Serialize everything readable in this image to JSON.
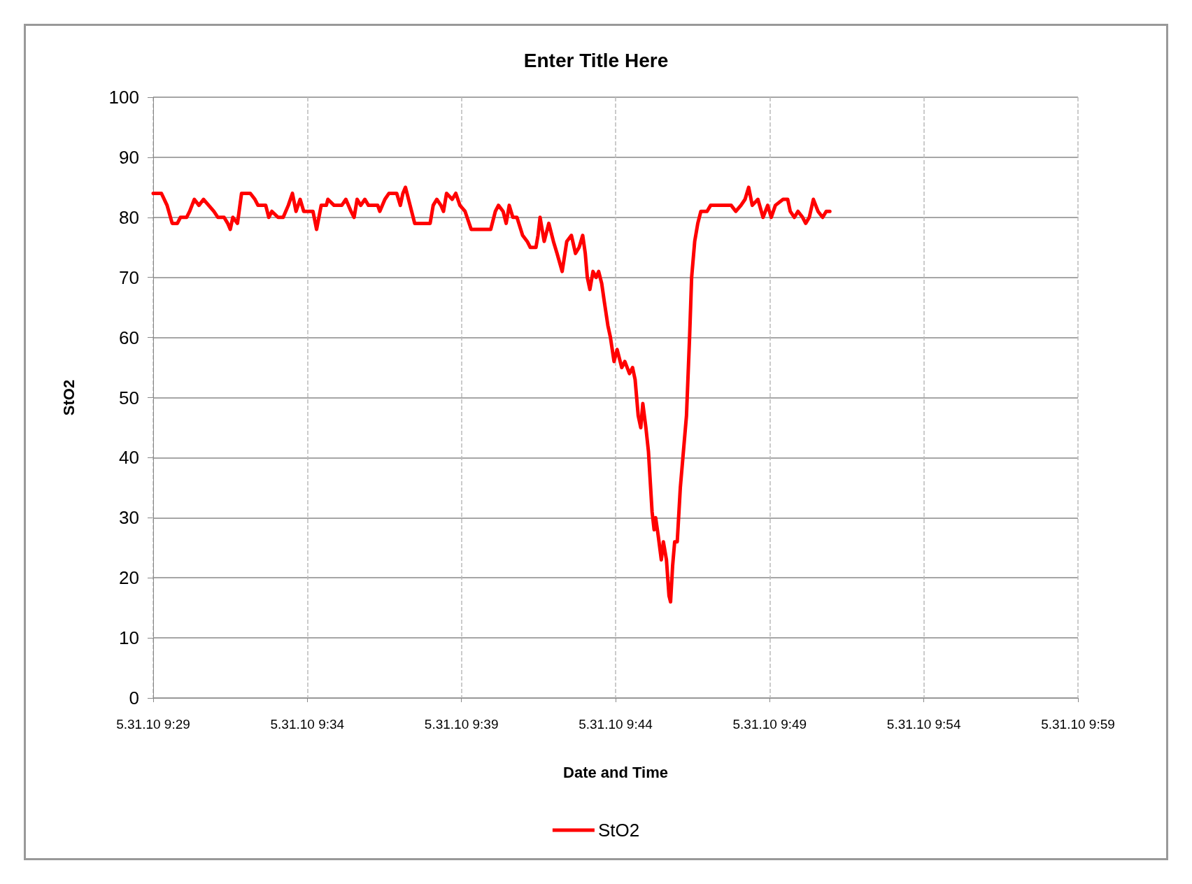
{
  "chart_data": {
    "type": "line",
    "title": "Enter Title Here",
    "xlabel": "Date and Time",
    "ylabel": "StO2",
    "x": [
      "--05-31T09:29:00",
      "--05-31T09:29:16",
      "--05-31T09:29:27",
      "--05-31T09:29:37",
      "--05-31T09:29:47",
      "--05-31T09:29:53",
      "--05-31T09:30:05",
      "--05-31T09:30:11",
      "--05-31T09:30:20",
      "--05-31T09:30:29",
      "--05-31T09:30:38",
      "--05-31T09:30:48",
      "--05-31T09:30:58",
      "--05-31T09:31:06",
      "--05-31T09:31:18",
      "--05-31T09:31:25",
      "--05-31T09:31:30",
      "--05-31T09:31:35",
      "--05-31T09:31:44",
      "--05-31T09:31:52",
      "--05-31T09:32:09",
      "--05-31T09:32:18",
      "--05-31T09:32:24",
      "--05-31T09:32:39",
      "--05-31T09:32:45",
      "--05-31T09:32:51",
      "--05-31T09:33:03",
      "--05-31T09:33:13",
      "--05-31T09:33:23",
      "--05-31T09:33:31",
      "--05-31T09:33:38",
      "--05-31T09:33:46",
      "--05-31T09:33:53",
      "--05-31T09:34:11",
      "--05-31T09:34:18",
      "--05-31T09:34:27",
      "--05-31T09:34:37",
      "--05-31T09:34:40",
      "--05-31T09:34:52",
      "--05-31T09:35:07",
      "--05-31T09:35:15",
      "--05-31T09:35:25",
      "--05-31T09:35:31",
      "--05-31T09:35:37",
      "--05-31T09:35:44",
      "--05-31T09:35:52",
      "--05-31T09:35:59",
      "--05-31T09:36:17",
      "--05-31T09:36:21",
      "--05-31T09:36:31",
      "--05-31T09:36:39",
      "--05-31T09:36:54",
      "--05-31T09:37:01",
      "--05-31T09:37:06",
      "--05-31T09:37:11",
      "--05-31T09:37:20",
      "--05-31T09:37:29",
      "--05-31T09:37:59",
      "--05-31T09:38:05",
      "--05-31T09:38:12",
      "--05-31T09:38:20",
      "--05-31T09:38:25",
      "--05-31T09:38:31",
      "--05-31T09:38:42",
      "--05-31T09:38:49",
      "--05-31T09:38:57",
      "--05-31T09:39:07",
      "--05-31T09:39:19",
      "--05-31T09:39:57",
      "--05-31T09:40:06",
      "--05-31T09:40:12",
      "--05-31T09:40:21",
      "--05-31T09:40:27",
      "--05-31T09:40:33",
      "--05-31T09:40:40",
      "--05-31T09:40:48",
      "--05-31T09:40:59",
      "--05-31T09:41:08",
      "--05-31T09:41:14",
      "--05-31T09:41:25",
      "--05-31T09:41:29",
      "--05-31T09:41:33",
      "--05-31T09:41:41",
      "--05-31T09:41:50",
      "--05-31T09:41:59",
      "--05-31T09:42:06",
      "--05-31T09:42:16",
      "--05-31T09:42:25",
      "--05-31T09:42:34",
      "--05-31T09:42:42",
      "--05-31T09:42:49",
      "--05-31T09:42:56",
      "--05-31T09:43:01",
      "--05-31T09:43:05",
      "--05-31T09:43:10",
      "--05-31T09:43:16",
      "--05-31T09:43:22",
      "--05-31T09:43:27",
      "--05-31T09:43:33",
      "--05-31T09:43:38",
      "--05-31T09:43:45",
      "--05-31T09:43:50",
      "--05-31T09:43:57",
      "--05-31T09:44:03",
      "--05-31T09:44:12",
      "--05-31T09:44:18",
      "--05-31T09:44:27",
      "--05-31T09:44:33",
      "--05-31T09:44:38",
      "--05-31T09:44:44",
      "--05-31T09:44:49",
      "--05-31T09:44:53",
      "--05-31T09:44:59",
      "--05-31T09:45:04",
      "--05-31T09:45:11",
      "--05-31T09:45:15",
      "--05-31T09:45:18",
      "--05-31T09:45:23",
      "--05-31T09:45:29",
      "--05-31T09:45:33",
      "--05-31T09:45:39",
      "--05-31T09:45:44",
      "--05-31T09:45:47",
      "--05-31T09:45:51",
      "--05-31T09:45:55",
      "--05-31T09:46:00",
      "--05-31T09:46:06",
      "--05-31T09:46:12",
      "--05-31T09:46:18",
      "--05-31T09:46:24",
      "--05-31T09:46:28",
      "--05-31T09:46:34",
      "--05-31T09:46:40",
      "--05-31T09:46:46",
      "--05-31T09:46:58",
      "--05-31T09:47:05",
      "--05-31T09:47:20",
      "--05-31T09:47:27",
      "--05-31T09:47:45",
      "--05-31T09:47:54",
      "--05-31T09:48:04",
      "--05-31T09:48:12",
      "--05-31T09:48:19",
      "--05-31T09:48:26",
      "--05-31T09:48:37",
      "--05-31T09:48:47",
      "--05-31T09:48:56",
      "--05-31T09:49:03",
      "--05-31T09:49:11",
      "--05-31T09:49:26",
      "--05-31T09:49:35",
      "--05-31T09:49:40",
      "--05-31T09:49:48",
      "--05-31T09:49:55",
      "--05-31T09:50:04",
      "--05-31T09:50:10",
      "--05-31T09:50:17",
      "--05-31T09:50:25",
      "--05-31T09:50:34",
      "--05-31T09:50:43",
      "--05-31T09:50:50",
      "--05-31T09:50:57"
    ],
    "series": [
      {
        "name": "StO2",
        "color": "#ff0000",
        "values": [
          84,
          84,
          82,
          79,
          79,
          80,
          80,
          81,
          83,
          82,
          83,
          82,
          81,
          80,
          80,
          79,
          78,
          80,
          79,
          84,
          84,
          83,
          82,
          82,
          80,
          81,
          80,
          80,
          82,
          84,
          81,
          83,
          81,
          81,
          78,
          82,
          82,
          83,
          82,
          82,
          83,
          81,
          80,
          83,
          82,
          83,
          82,
          82,
          81,
          83,
          84,
          84,
          82,
          84,
          85,
          82,
          79,
          79,
          82,
          83,
          82,
          81,
          84,
          83,
          84,
          82,
          81,
          78,
          78,
          81,
          82,
          81,
          79,
          82,
          80,
          80,
          77,
          76,
          75,
          75,
          77,
          80,
          76,
          79,
          76,
          74,
          71,
          76,
          77,
          74,
          75,
          77,
          74,
          70,
          68,
          71,
          70,
          71,
          69,
          66,
          62,
          60,
          56,
          58,
          55,
          56,
          54,
          55,
          53,
          47,
          45,
          49,
          45,
          41,
          31,
          28,
          30,
          27,
          23,
          26,
          23,
          17,
          16,
          22,
          26,
          26,
          35,
          41,
          47,
          60,
          70,
          76,
          79,
          81,
          81,
          82,
          82,
          82,
          82,
          81,
          82,
          83,
          85,
          82,
          83,
          80,
          82,
          80,
          82,
          83,
          83,
          81,
          80,
          81,
          80,
          79,
          80,
          83,
          81,
          80,
          81,
          81
        ]
      }
    ],
    "xlim": [
      "--05-31T09:29",
      "--05-31T09:59"
    ],
    "xticks": [
      {
        "value": "--05-31T09:29",
        "label": "5.31.10 9:29"
      },
      {
        "value": "--05-31T09:34",
        "label": "5.31.10 9:34"
      },
      {
        "value": "--05-31T09:39",
        "label": "5.31.10 9:39"
      },
      {
        "value": "--05-31T09:44",
        "label": "5.31.10 9:44"
      },
      {
        "value": "--05-31T09:49",
        "label": "5.31.10 9:49"
      },
      {
        "value": "--05-31T09:54",
        "label": "5.31.10 9:54"
      },
      {
        "value": "--05-31T09:59",
        "label": "5.31.10 9:59"
      }
    ],
    "ylim": [
      0,
      100
    ],
    "yticks": [
      0,
      10,
      20,
      30,
      40,
      50,
      60,
      70,
      80,
      90,
      100
    ],
    "grid": true,
    "legend": "bottom",
    "marker": "none",
    "line_style": "solid"
  }
}
